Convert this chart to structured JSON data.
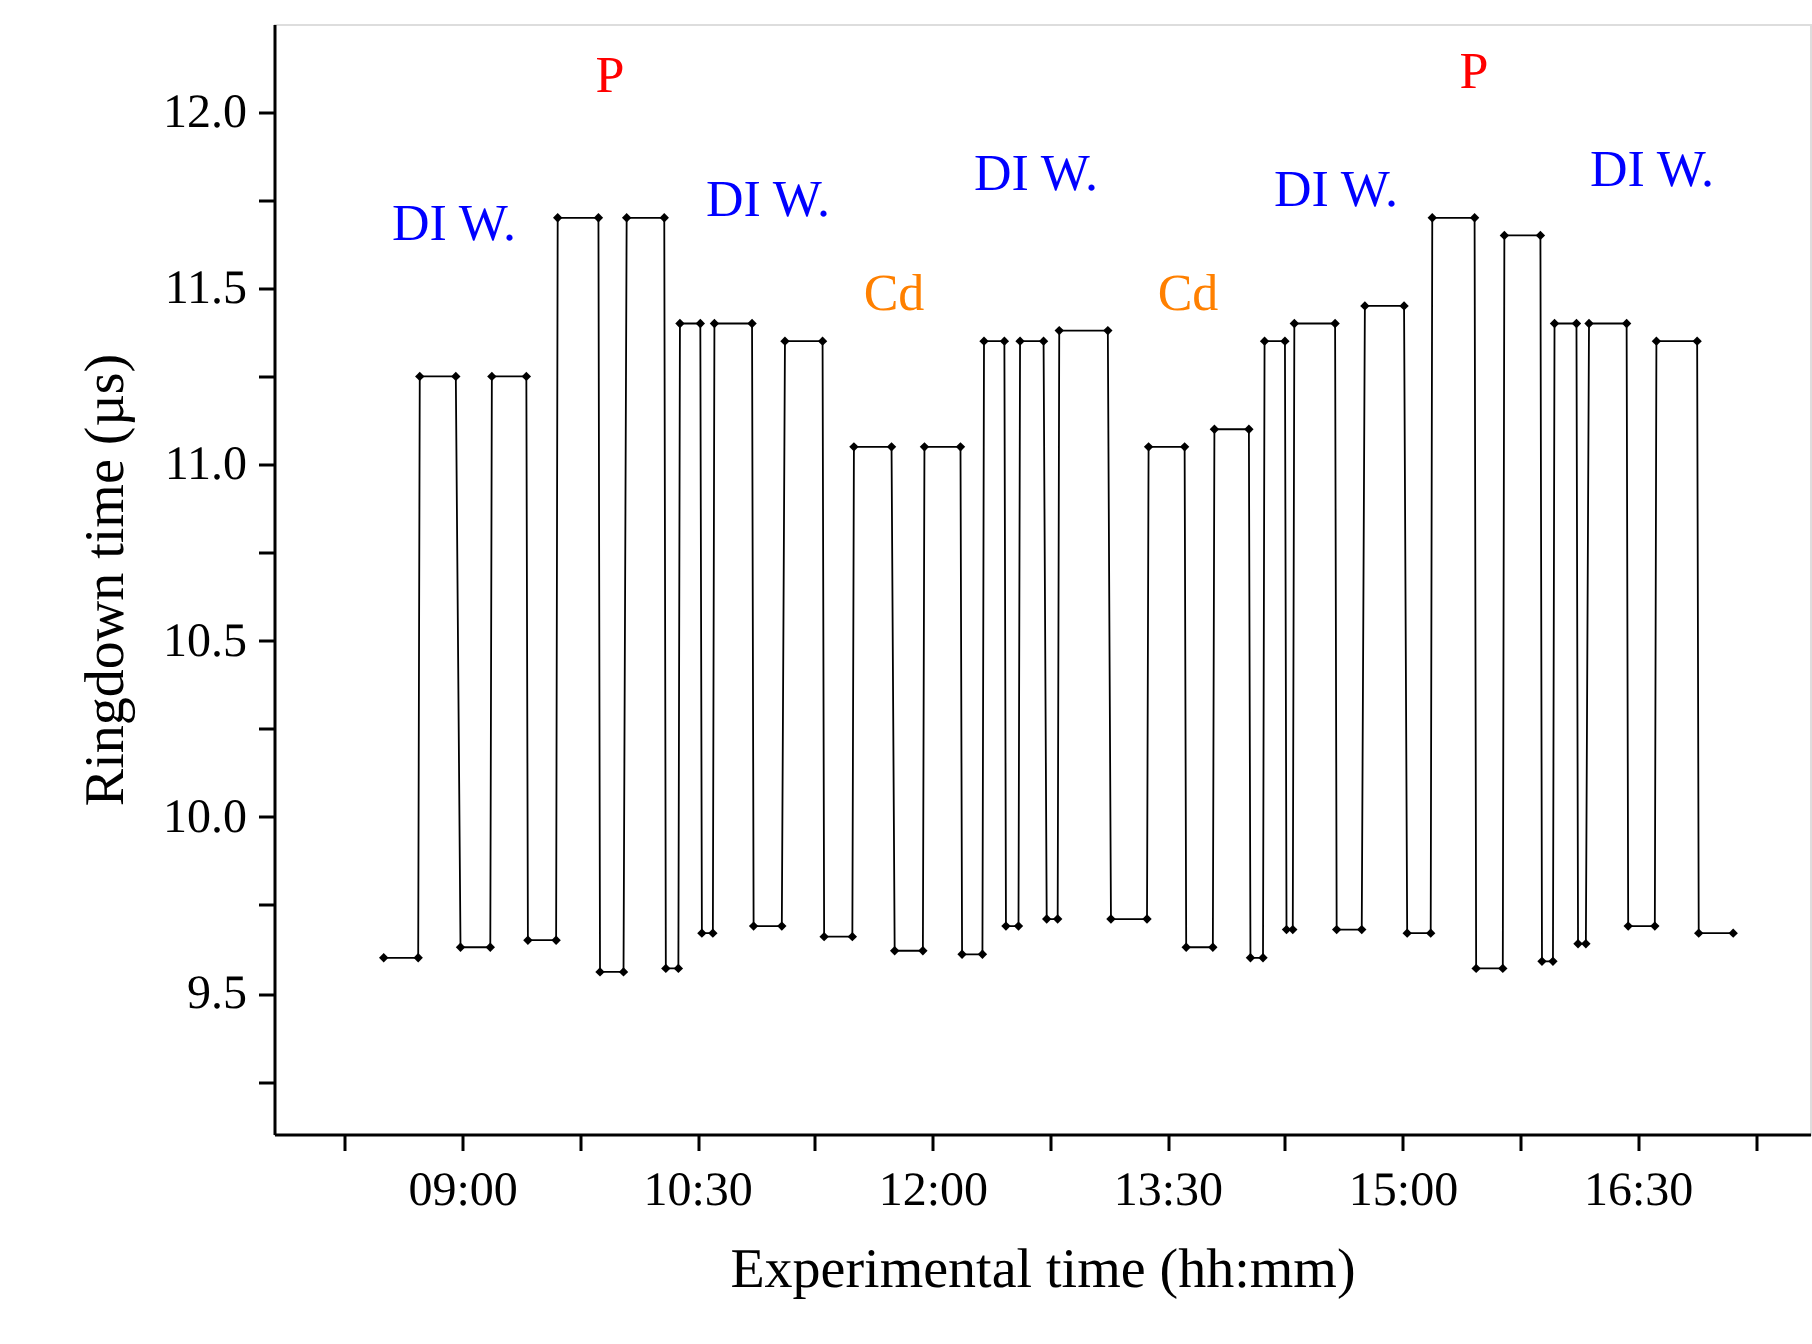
{
  "chart_data": {
    "type": "line",
    "xlabel": "Experimental time (hh:mm)",
    "ylabel": "Ringdown time (µs)",
    "xlim": [
      7.8,
      17.6
    ],
    "ylim": [
      9.1,
      12.25
    ],
    "xticks": [
      {
        "value": 8.25,
        "label": null
      },
      {
        "value": 9,
        "label": "09:00"
      },
      {
        "value": 9.75,
        "label": null
      },
      {
        "value": 10.5,
        "label": "10:30"
      },
      {
        "value": 11.25,
        "label": null
      },
      {
        "value": 12,
        "label": "12:00"
      },
      {
        "value": 12.75,
        "label": null
      },
      {
        "value": 13.5,
        "label": "13:30"
      },
      {
        "value": 14.25,
        "label": null
      },
      {
        "value": 15,
        "label": "15:00"
      },
      {
        "value": 15.75,
        "label": null
      },
      {
        "value": 16.5,
        "label": "16:30"
      },
      {
        "value": 17.25,
        "label": null
      }
    ],
    "yticks": [
      {
        "value": 9.25,
        "label": null
      },
      {
        "value": 9.5,
        "label": "9.5"
      },
      {
        "value": 9.75,
        "label": null
      },
      {
        "value": 10,
        "label": "10.0"
      },
      {
        "value": 10.25,
        "label": null
      },
      {
        "value": 10.5,
        "label": "10.5"
      },
      {
        "value": 10.75,
        "label": null
      },
      {
        "value": 11,
        "label": "11.0"
      },
      {
        "value": 11.25,
        "label": null
      },
      {
        "value": 11.5,
        "label": "11.5"
      },
      {
        "value": 11.75,
        "label": null
      },
      {
        "value": 12,
        "label": "12.0"
      }
    ],
    "grid": false,
    "marker": "diamond",
    "line_style": "solid",
    "series": [
      {
        "color": "#000000",
        "x": [
          8.5,
          8.72,
          8.73,
          8.96,
          8.99,
          9.18,
          9.19,
          9.41,
          9.42,
          9.6,
          9.61,
          9.87,
          9.88,
          10.03,
          10.05,
          10.29,
          10.3,
          10.38,
          10.39,
          10.52,
          10.53,
          10.6,
          10.61,
          10.85,
          10.86,
          11.04,
          11.06,
          11.3,
          11.31,
          11.49,
          11.5,
          11.74,
          11.76,
          11.94,
          11.95,
          12.18,
          12.19,
          12.32,
          12.33,
          12.46,
          12.47,
          12.55,
          12.56,
          12.71,
          12.73,
          12.8,
          12.81,
          13.12,
          13.14,
          13.37,
          13.38,
          13.61,
          13.62,
          13.79,
          13.8,
          14.02,
          14.03,
          14.11,
          14.12,
          14.25,
          14.26,
          14.3,
          14.31,
          14.57,
          14.58,
          14.74,
          14.76,
          15.01,
          15.03,
          15.18,
          15.19,
          15.46,
          15.47,
          15.64,
          15.65,
          15.88,
          15.89,
          15.96,
          15.97,
          16.11,
          16.12,
          16.17,
          16.19,
          16.43,
          16.44,
          16.61,
          16.62,
          16.88,
          16.89,
          17.11
        ],
        "values": [
          9.6,
          9.6,
          11.25,
          11.25,
          9.63,
          9.63,
          11.25,
          11.25,
          9.65,
          9.65,
          11.7,
          11.7,
          9.56,
          9.56,
          11.7,
          11.7,
          9.57,
          9.57,
          11.4,
          11.4,
          9.67,
          9.67,
          11.4,
          11.4,
          9.69,
          9.69,
          11.35,
          11.35,
          9.66,
          9.66,
          11.05,
          11.05,
          9.62,
          9.62,
          11.05,
          11.05,
          9.61,
          9.61,
          11.35,
          11.35,
          9.69,
          9.69,
          11.35,
          11.35,
          9.71,
          9.71,
          11.38,
          11.38,
          9.71,
          9.71,
          11.05,
          11.05,
          9.63,
          9.63,
          11.1,
          11.1,
          9.6,
          9.6,
          11.35,
          11.35,
          9.68,
          9.68,
          11.4,
          11.4,
          9.68,
          9.68,
          11.45,
          11.45,
          9.67,
          9.67,
          11.7,
          11.7,
          9.57,
          9.57,
          11.65,
          11.65,
          9.59,
          9.59,
          11.4,
          11.4,
          9.64,
          9.64,
          11.4,
          11.4,
          9.69,
          9.69,
          11.35,
          11.35,
          9.67,
          9.67
        ]
      }
    ],
    "annotations": [
      "DI W.",
      "P",
      "DI W.",
      "Cd",
      "DI W.",
      "Cd",
      "DI W.",
      "P",
      "DI W."
    ]
  }
}
